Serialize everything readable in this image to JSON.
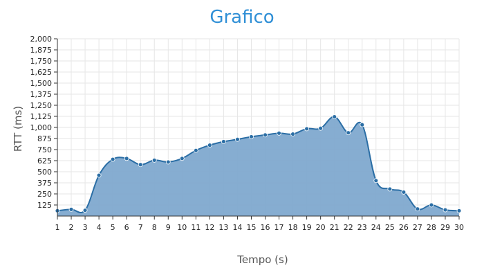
{
  "chart_data": {
    "type": "area",
    "title": "Grafico",
    "xlabel": "Tempo (s)",
    "ylabel": "RTT (ms)",
    "ylim": [
      0,
      2000
    ],
    "xlim": [
      1,
      30
    ],
    "y_ticks": [
      "125",
      "250",
      "375",
      "500",
      "625",
      "750",
      "875",
      "1,000",
      "1,125",
      "1,250",
      "1,375",
      "1,500",
      "1,625",
      "1,750",
      "1,875",
      "2,000"
    ],
    "y_tick_values": [
      125,
      250,
      375,
      500,
      625,
      750,
      875,
      1000,
      1125,
      1250,
      1375,
      1500,
      1625,
      1750,
      1875,
      2000
    ],
    "x": [
      1,
      2,
      3,
      4,
      5,
      6,
      7,
      8,
      9,
      10,
      11,
      12,
      13,
      14,
      15,
      16,
      17,
      18,
      19,
      20,
      21,
      22,
      23,
      24,
      25,
      26,
      27,
      28,
      29,
      30
    ],
    "series": [
      {
        "values": [
          60,
          75,
          65,
          460,
          640,
          650,
          580,
          630,
          610,
          650,
          740,
          800,
          840,
          865,
          895,
          915,
          935,
          925,
          985,
          990,
          1120,
          940,
          1030,
          400,
          305,
          270,
          80,
          125,
          70,
          60
        ]
      }
    ],
    "grid": true,
    "legend": "none",
    "colors": {
      "title": "#2f8fd6",
      "line": "#2b6ea5",
      "area": "#7fa9cf",
      "grid": "#e6e6e6"
    }
  }
}
